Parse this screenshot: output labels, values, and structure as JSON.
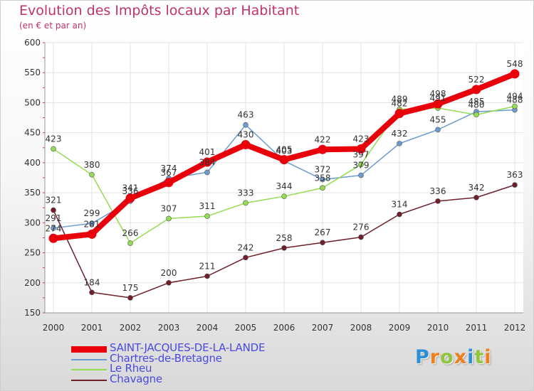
{
  "chart_data": {
    "type": "line",
    "title": "Evolution des Impôts locaux par Habitant",
    "subtitle": "(en € et par an)",
    "x": [
      "2000",
      "2001",
      "2002",
      "2003",
      "2004",
      "2005",
      "2006",
      "2007",
      "2008",
      "2009",
      "2010",
      "2011",
      "2012"
    ],
    "ylim": [
      150,
      600
    ],
    "yticks": [
      150,
      200,
      250,
      300,
      350,
      400,
      450,
      500,
      550,
      600
    ],
    "grid": true,
    "legend_position": "bottom-left",
    "series": [
      {
        "name": "SAINT-JACQUES-DE-LA-LANDE",
        "color": "#e8000b",
        "emphasis": true,
        "values": [
          274,
          281,
          341,
          367,
          401,
          430,
          405,
          422,
          423,
          482,
          498,
          522,
          548
        ]
      },
      {
        "name": "Chartres-de-Bretagne",
        "color": "#6c9ccf",
        "emphasis": false,
        "values": [
          291,
          299,
          336,
          374,
          384,
          463,
          403,
          372,
          379,
          432,
          455,
          485,
          488
        ]
      },
      {
        "name": "Le Rheu",
        "color": "#94dc52",
        "emphasis": false,
        "values": [
          423,
          380,
          266,
          307,
          311,
          333,
          344,
          358,
          397,
          489,
          491,
          480,
          494
        ]
      },
      {
        "name": "Chavagne",
        "color": "#6e1f2a",
        "emphasis": false,
        "values": [
          321,
          184,
          175,
          200,
          211,
          242,
          258,
          267,
          276,
          314,
          336,
          342,
          363
        ]
      }
    ]
  },
  "logo": {
    "letters": [
      "P",
      "r",
      "o",
      "x",
      "i",
      "t",
      "i"
    ],
    "colors": [
      "#2f8fd6",
      "#f07e1a",
      "#8fc63e",
      "#f07e1a",
      "#2f8fd6",
      "#8fc63e",
      "#f07e1a"
    ]
  }
}
